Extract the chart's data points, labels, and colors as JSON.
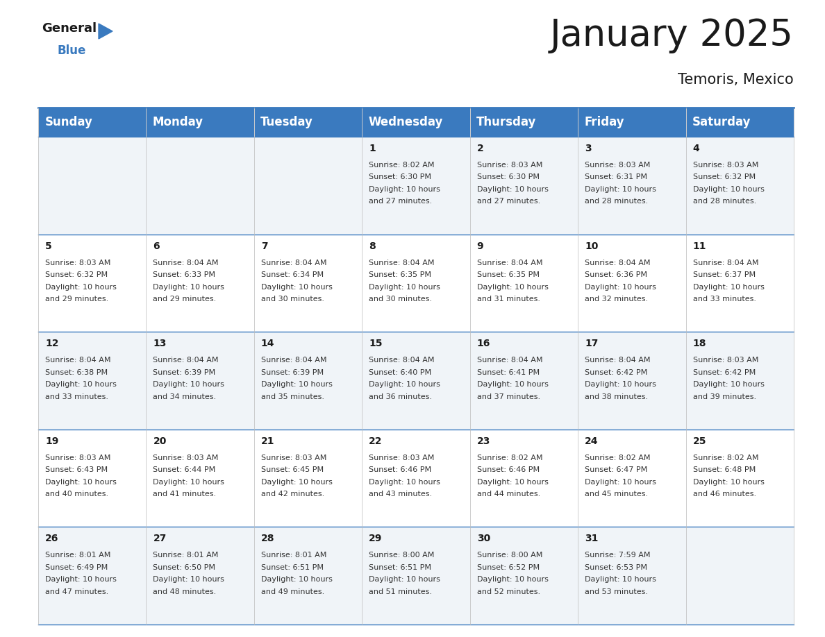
{
  "title": "January 2025",
  "subtitle": "Temoris, Mexico",
  "header_color": "#3a7abf",
  "header_text_color": "#ffffff",
  "cell_bg_even": "#f0f4f8",
  "cell_bg_odd": "#ffffff",
  "day_names": [
    "Sunday",
    "Monday",
    "Tuesday",
    "Wednesday",
    "Thursday",
    "Friday",
    "Saturday"
  ],
  "title_fontsize": 38,
  "subtitle_fontsize": 15,
  "header_fontsize": 12,
  "cell_number_fontsize": 10,
  "cell_text_fontsize": 8,
  "logo_general_fontsize": 13,
  "logo_blue_fontsize": 12,
  "days": [
    {
      "date": 1,
      "col": 3,
      "row": 0,
      "sunrise": "8:02 AM",
      "sunset": "6:30 PM",
      "daylight_hours": 10,
      "daylight_minutes": 27
    },
    {
      "date": 2,
      "col": 4,
      "row": 0,
      "sunrise": "8:03 AM",
      "sunset": "6:30 PM",
      "daylight_hours": 10,
      "daylight_minutes": 27
    },
    {
      "date": 3,
      "col": 5,
      "row": 0,
      "sunrise": "8:03 AM",
      "sunset": "6:31 PM",
      "daylight_hours": 10,
      "daylight_minutes": 28
    },
    {
      "date": 4,
      "col": 6,
      "row": 0,
      "sunrise": "8:03 AM",
      "sunset": "6:32 PM",
      "daylight_hours": 10,
      "daylight_minutes": 28
    },
    {
      "date": 5,
      "col": 0,
      "row": 1,
      "sunrise": "8:03 AM",
      "sunset": "6:32 PM",
      "daylight_hours": 10,
      "daylight_minutes": 29
    },
    {
      "date": 6,
      "col": 1,
      "row": 1,
      "sunrise": "8:04 AM",
      "sunset": "6:33 PM",
      "daylight_hours": 10,
      "daylight_minutes": 29
    },
    {
      "date": 7,
      "col": 2,
      "row": 1,
      "sunrise": "8:04 AM",
      "sunset": "6:34 PM",
      "daylight_hours": 10,
      "daylight_minutes": 30
    },
    {
      "date": 8,
      "col": 3,
      "row": 1,
      "sunrise": "8:04 AM",
      "sunset": "6:35 PM",
      "daylight_hours": 10,
      "daylight_minutes": 30
    },
    {
      "date": 9,
      "col": 4,
      "row": 1,
      "sunrise": "8:04 AM",
      "sunset": "6:35 PM",
      "daylight_hours": 10,
      "daylight_minutes": 31
    },
    {
      "date": 10,
      "col": 5,
      "row": 1,
      "sunrise": "8:04 AM",
      "sunset": "6:36 PM",
      "daylight_hours": 10,
      "daylight_minutes": 32
    },
    {
      "date": 11,
      "col": 6,
      "row": 1,
      "sunrise": "8:04 AM",
      "sunset": "6:37 PM",
      "daylight_hours": 10,
      "daylight_minutes": 33
    },
    {
      "date": 12,
      "col": 0,
      "row": 2,
      "sunrise": "8:04 AM",
      "sunset": "6:38 PM",
      "daylight_hours": 10,
      "daylight_minutes": 33
    },
    {
      "date": 13,
      "col": 1,
      "row": 2,
      "sunrise": "8:04 AM",
      "sunset": "6:39 PM",
      "daylight_hours": 10,
      "daylight_minutes": 34
    },
    {
      "date": 14,
      "col": 2,
      "row": 2,
      "sunrise": "8:04 AM",
      "sunset": "6:39 PM",
      "daylight_hours": 10,
      "daylight_minutes": 35
    },
    {
      "date": 15,
      "col": 3,
      "row": 2,
      "sunrise": "8:04 AM",
      "sunset": "6:40 PM",
      "daylight_hours": 10,
      "daylight_minutes": 36
    },
    {
      "date": 16,
      "col": 4,
      "row": 2,
      "sunrise": "8:04 AM",
      "sunset": "6:41 PM",
      "daylight_hours": 10,
      "daylight_minutes": 37
    },
    {
      "date": 17,
      "col": 5,
      "row": 2,
      "sunrise": "8:04 AM",
      "sunset": "6:42 PM",
      "daylight_hours": 10,
      "daylight_minutes": 38
    },
    {
      "date": 18,
      "col": 6,
      "row": 2,
      "sunrise": "8:03 AM",
      "sunset": "6:42 PM",
      "daylight_hours": 10,
      "daylight_minutes": 39
    },
    {
      "date": 19,
      "col": 0,
      "row": 3,
      "sunrise": "8:03 AM",
      "sunset": "6:43 PM",
      "daylight_hours": 10,
      "daylight_minutes": 40
    },
    {
      "date": 20,
      "col": 1,
      "row": 3,
      "sunrise": "8:03 AM",
      "sunset": "6:44 PM",
      "daylight_hours": 10,
      "daylight_minutes": 41
    },
    {
      "date": 21,
      "col": 2,
      "row": 3,
      "sunrise": "8:03 AM",
      "sunset": "6:45 PM",
      "daylight_hours": 10,
      "daylight_minutes": 42
    },
    {
      "date": 22,
      "col": 3,
      "row": 3,
      "sunrise": "8:03 AM",
      "sunset": "6:46 PM",
      "daylight_hours": 10,
      "daylight_minutes": 43
    },
    {
      "date": 23,
      "col": 4,
      "row": 3,
      "sunrise": "8:02 AM",
      "sunset": "6:46 PM",
      "daylight_hours": 10,
      "daylight_minutes": 44
    },
    {
      "date": 24,
      "col": 5,
      "row": 3,
      "sunrise": "8:02 AM",
      "sunset": "6:47 PM",
      "daylight_hours": 10,
      "daylight_minutes": 45
    },
    {
      "date": 25,
      "col": 6,
      "row": 3,
      "sunrise": "8:02 AM",
      "sunset": "6:48 PM",
      "daylight_hours": 10,
      "daylight_minutes": 46
    },
    {
      "date": 26,
      "col": 0,
      "row": 4,
      "sunrise": "8:01 AM",
      "sunset": "6:49 PM",
      "daylight_hours": 10,
      "daylight_minutes": 47
    },
    {
      "date": 27,
      "col": 1,
      "row": 4,
      "sunrise": "8:01 AM",
      "sunset": "6:50 PM",
      "daylight_hours": 10,
      "daylight_minutes": 48
    },
    {
      "date": 28,
      "col": 2,
      "row": 4,
      "sunrise": "8:01 AM",
      "sunset": "6:51 PM",
      "daylight_hours": 10,
      "daylight_minutes": 49
    },
    {
      "date": 29,
      "col": 3,
      "row": 4,
      "sunrise": "8:00 AM",
      "sunset": "6:51 PM",
      "daylight_hours": 10,
      "daylight_minutes": 51
    },
    {
      "date": 30,
      "col": 4,
      "row": 4,
      "sunrise": "8:00 AM",
      "sunset": "6:52 PM",
      "daylight_hours": 10,
      "daylight_minutes": 52
    },
    {
      "date": 31,
      "col": 5,
      "row": 4,
      "sunrise": "7:59 AM",
      "sunset": "6:53 PM",
      "daylight_hours": 10,
      "daylight_minutes": 53
    }
  ]
}
